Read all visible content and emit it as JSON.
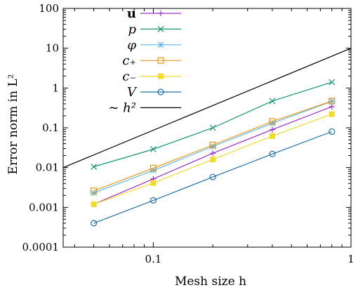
{
  "chart_data": {
    "type": "line",
    "title": "",
    "xlabel": "Mesh size  h",
    "ylabel": "Error norm in L²",
    "xscale": "log",
    "yscale": "log",
    "xlim": [
      0.035,
      1.0
    ],
    "ylim": [
      0.0001,
      100
    ],
    "x_ticks": [
      {
        "value": 0.1,
        "label": "0.1"
      },
      {
        "value": 1,
        "label": "1"
      }
    ],
    "y_ticks": [
      {
        "value": 0.0001,
        "label": "0.0001"
      },
      {
        "value": 0.001,
        "label": "0.001"
      },
      {
        "value": 0.01,
        "label": "0.01"
      },
      {
        "value": 0.1,
        "label": "0.1"
      },
      {
        "value": 1,
        "label": "1"
      },
      {
        "value": 10,
        "label": "10"
      },
      {
        "value": 100,
        "label": "100"
      }
    ],
    "grid": false,
    "legend_position": "top-left",
    "x": [
      0.05,
      0.1,
      0.2,
      0.4,
      0.8
    ],
    "series": [
      {
        "name": "u",
        "marker": "plus",
        "color": "#9b30c8",
        "values": [
          0.0012,
          0.0052,
          0.023,
          0.09,
          0.34
        ]
      },
      {
        "name": "p",
        "marker": "cross",
        "color": "#16966e",
        "values": [
          0.0105,
          0.029,
          0.1,
          0.47,
          1.4
        ]
      },
      {
        "name": "φ",
        "marker": "star",
        "color": "#5fb7e8",
        "values": [
          0.0023,
          0.0085,
          0.034,
          0.13,
          0.46
        ]
      },
      {
        "name": "c₊",
        "marker": "square-open",
        "color": "#e69a1b",
        "values": [
          0.0026,
          0.0097,
          0.037,
          0.145,
          0.47
        ]
      },
      {
        "name": "c₋",
        "marker": "square-filled",
        "color": "#f2dc2a",
        "values": [
          0.0012,
          0.0041,
          0.016,
          0.062,
          0.22
        ]
      },
      {
        "name": "V",
        "marker": "circle-open",
        "color": "#1f6fa8",
        "values": [
          0.0004,
          0.0015,
          0.0058,
          0.022,
          0.08
        ]
      },
      {
        "name": "∼ h²",
        "marker": "none",
        "color": "#000000",
        "reference": true,
        "x": [
          0.035,
          1.0
        ],
        "values": [
          0.01,
          10
        ]
      }
    ]
  }
}
